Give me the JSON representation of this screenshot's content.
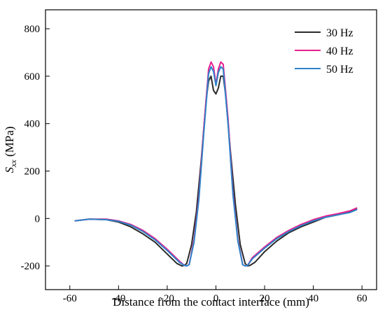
{
  "chart_data": {
    "type": "line",
    "xlabel": "Distance from the contact interface (mm)",
    "ylabel": "S_xx (MPa)",
    "ylabel_main": "S",
    "ylabel_sub": "xx",
    "ylabel_unit": " (MPa)",
    "xlim": [
      -70,
      66
    ],
    "ylim": [
      -300,
      880
    ],
    "xticks": [
      -60,
      -40,
      -20,
      0,
      20,
      40,
      60
    ],
    "yticks": [
      -200,
      0,
      200,
      400,
      600,
      800
    ],
    "grid": false,
    "legend_position": "top-right",
    "series": [
      {
        "name": "30 Hz",
        "color": "#2b2b2b",
        "x": [
          -58,
          -52,
          -45,
          -40,
          -35,
          -30,
          -25,
          -20,
          -16,
          -14,
          -13,
          -12,
          -10,
          -8,
          -6,
          -4,
          -3,
          -2,
          -1,
          0,
          1,
          2,
          3,
          4,
          6,
          8,
          10,
          12,
          13,
          14,
          16,
          20,
          25,
          30,
          35,
          40,
          45,
          50,
          55,
          58
        ],
        "y": [
          -10,
          -3,
          -5,
          -15,
          -35,
          -65,
          -100,
          -150,
          -190,
          -200,
          -198,
          -190,
          -110,
          30,
          250,
          500,
          580,
          600,
          540,
          525,
          550,
          600,
          600,
          520,
          280,
          60,
          -110,
          -190,
          -200,
          -198,
          -185,
          -140,
          -95,
          -60,
          -35,
          -15,
          5,
          15,
          30,
          40
        ]
      },
      {
        "name": "40 Hz",
        "color": "#e8208f",
        "x": [
          -58,
          -52,
          -45,
          -40,
          -35,
          -30,
          -25,
          -20,
          -15,
          -13,
          -12,
          -11,
          -9,
          -7,
          -5,
          -3,
          -2,
          -1,
          0,
          1,
          2,
          3,
          5,
          7,
          9,
          11,
          12,
          13,
          15,
          20,
          25,
          30,
          35,
          40,
          45,
          50,
          55,
          58
        ],
        "y": [
          -10,
          -3,
          -3,
          -10,
          -25,
          -50,
          -85,
          -130,
          -180,
          -198,
          -200,
          -195,
          -90,
          90,
          380,
          630,
          660,
          640,
          565,
          630,
          660,
          650,
          420,
          110,
          -90,
          -195,
          -200,
          -198,
          -165,
          -120,
          -80,
          -50,
          -25,
          -5,
          10,
          20,
          32,
          45
        ]
      },
      {
        "name": "50 Hz",
        "color": "#2f82c9",
        "x": [
          -58,
          -52,
          -45,
          -40,
          -35,
          -30,
          -25,
          -20,
          -15,
          -13,
          -12,
          -11,
          -9,
          -7,
          -5,
          -3,
          -2,
          -1,
          0,
          1,
          2,
          3,
          5,
          7,
          9,
          11,
          12,
          13,
          15,
          20,
          25,
          30,
          35,
          40,
          45,
          50,
          55,
          58
        ],
        "y": [
          -10,
          -3,
          -5,
          -12,
          -28,
          -55,
          -90,
          -135,
          -185,
          -198,
          -200,
          -195,
          -100,
          80,
          360,
          610,
          640,
          620,
          560,
          615,
          640,
          630,
          400,
          100,
          -95,
          -195,
          -200,
          -198,
          -170,
          -125,
          -85,
          -55,
          -30,
          -10,
          5,
          15,
          25,
          38
        ]
      }
    ]
  }
}
